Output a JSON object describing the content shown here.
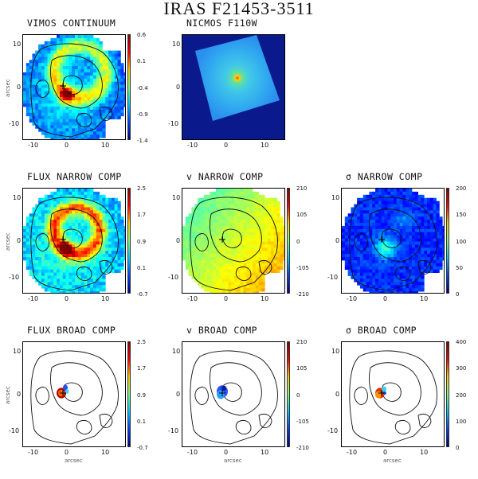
{
  "figure_title": "IRAS F21453-3511",
  "axis_label": "arcsec",
  "panels": [
    {
      "id": "vimos-continuum",
      "title": "VIMOS CONTINUUM",
      "map": "flux",
      "cbar_ticks": [
        "0.6",
        "0.1",
        "-0.4",
        "-0.9",
        "-1.4"
      ],
      "x_ticks": [
        "-10",
        "0",
        "10"
      ],
      "y_ticks": [
        "10",
        "0",
        "-10"
      ],
      "show_xlabel": false,
      "show_ylabel": true,
      "contours": true
    },
    {
      "id": "nicmos",
      "title": "NICMOS F110W",
      "map": "nicmos",
      "cbar_ticks": [],
      "x_ticks": [
        "-10",
        "0",
        "10"
      ],
      "y_ticks": [
        "10",
        "0",
        "-10"
      ],
      "show_xlabel": false,
      "show_ylabel": false,
      "contours": false
    },
    {
      "id": "flux-narrow",
      "title": "FLUX NARROW COMP",
      "map": "flux2",
      "cbar_ticks": [
        "2.5",
        "1.7",
        "0.9",
        "0.1",
        "-0.7"
      ],
      "x_ticks": [
        "-10",
        "0",
        "10"
      ],
      "y_ticks": [
        "10",
        "0",
        "-10"
      ],
      "show_xlabel": false,
      "show_ylabel": true,
      "contours": true
    },
    {
      "id": "v-narrow",
      "title": "v NARROW COMP",
      "map": "vel",
      "cbar_ticks": [
        "210",
        "105",
        "0",
        "-105",
        "-210"
      ],
      "x_ticks": [
        "-10",
        "0",
        "10"
      ],
      "y_ticks": [
        "10",
        "0",
        "-10"
      ],
      "show_xlabel": false,
      "show_ylabel": false,
      "contours": true
    },
    {
      "id": "sigma-narrow",
      "title": "σ NARROW COMP",
      "map": "sigma",
      "cbar_ticks": [
        "200",
        "150",
        "100",
        "50",
        "0"
      ],
      "x_ticks": [
        "-10",
        "0",
        "10"
      ],
      "y_ticks": [
        "10",
        "0",
        "-10"
      ],
      "show_xlabel": false,
      "show_ylabel": false,
      "contours": true
    },
    {
      "id": "flux-broad",
      "title": "FLUX BROAD COMP",
      "map": "broad",
      "cbar_ticks": [
        "2.5",
        "1.7",
        "0.9",
        "0.1",
        "-0.7"
      ],
      "x_ticks": [
        "-10",
        "0",
        "10"
      ],
      "y_ticks": [
        "10",
        "0",
        "-10"
      ],
      "show_xlabel": true,
      "show_ylabel": true,
      "contours": true
    },
    {
      "id": "v-broad",
      "title": "v BROAD COMP",
      "map": "broadv",
      "cbar_ticks": [
        "210",
        "105",
        "0",
        "-105",
        "-210"
      ],
      "x_ticks": [
        "-10",
        "0",
        "10"
      ],
      "y_ticks": [
        "10",
        "0",
        "-10"
      ],
      "show_xlabel": true,
      "show_ylabel": false,
      "contours": true
    },
    {
      "id": "sigma-broad",
      "title": "σ BROAD COMP",
      "map": "broads",
      "cbar_ticks": [
        "400",
        "300",
        "200",
        "100",
        "0"
      ],
      "x_ticks": [
        "-10",
        "0",
        "10"
      ],
      "y_ticks": [
        "10",
        "0",
        "-10"
      ],
      "show_xlabel": true,
      "show_ylabel": false,
      "contours": true
    }
  ]
}
